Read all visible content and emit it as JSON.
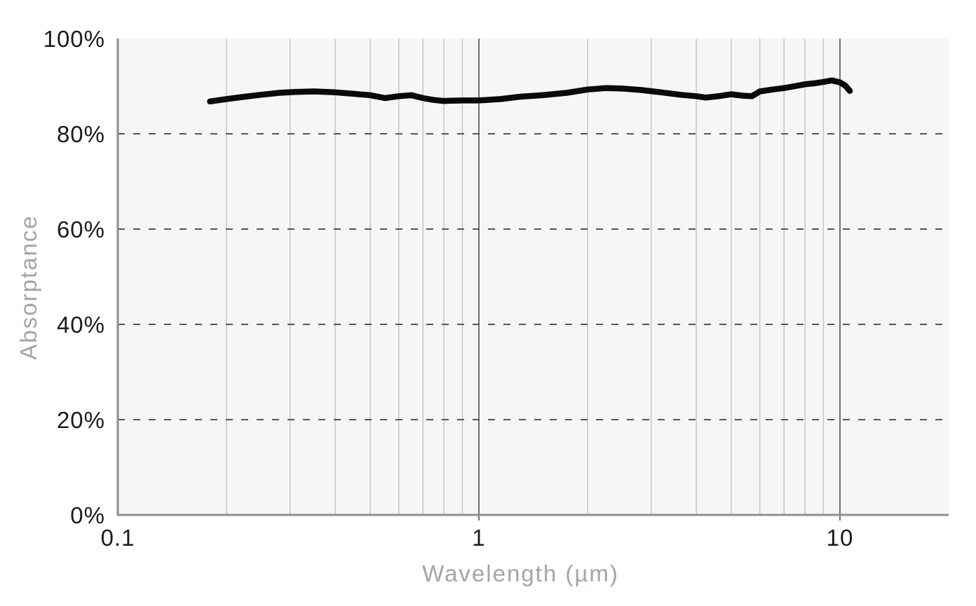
{
  "chart": {
    "title": "",
    "x_axis_title": "Wavelength (µm)",
    "y_axis_title": "Absorptance",
    "x_tick_labels": [
      "0.1",
      "1",
      "10"
    ],
    "y_tick_labels": [
      "0%",
      "20%",
      "40%",
      "60%",
      "80%",
      "100%"
    ]
  },
  "colors": {
    "page_bg": "#ffffff",
    "plot_bg": "#f6f6f6",
    "grid_minor": "#c6c6c6",
    "grid_major": "#6f6f6f",
    "grid_dashed": "#565656",
    "axis_border": "#8f8f8f",
    "tick_text": "#1b1b1b",
    "axis_title_text": "#a7a3a7",
    "line": "#0a0a0a"
  },
  "chart_data": {
    "type": "line",
    "title": "",
    "xlabel": "Wavelength (µm)",
    "ylabel": "Absorptance",
    "x_scale": "log",
    "xlim": [
      0.1,
      20
    ],
    "ylim": [
      0,
      100
    ],
    "y_unit": "%",
    "grid": true,
    "legend": false,
    "x_ticks": [
      {
        "label": "0.1",
        "value": 0.1
      },
      {
        "label": "1",
        "value": 1
      },
      {
        "label": "10",
        "value": 10
      }
    ],
    "y_ticks": [
      {
        "label": "0%",
        "value": 0
      },
      {
        "label": "20%",
        "value": 20
      },
      {
        "label": "40%",
        "value": 40
      },
      {
        "label": "60%",
        "value": 60
      },
      {
        "label": "80%",
        "value": 80
      },
      {
        "label": "100%",
        "value": 100
      }
    ],
    "x_gridlines_minor": [
      0.2,
      0.3,
      0.4,
      0.5,
      0.6,
      0.7,
      0.8,
      0.9,
      2,
      3,
      4,
      5,
      6,
      7,
      8,
      9
    ],
    "x_gridlines_major": [
      1,
      10
    ],
    "y_gridlines_dashed": [
      20,
      40,
      60,
      80
    ],
    "series": [
      {
        "name": "Absorptance",
        "color": "#0a0a0a",
        "points": [
          [
            0.18,
            86.8
          ],
          [
            0.2,
            87.3
          ],
          [
            0.22,
            87.7
          ],
          [
            0.25,
            88.2
          ],
          [
            0.28,
            88.6
          ],
          [
            0.31,
            88.8
          ],
          [
            0.35,
            88.9
          ],
          [
            0.4,
            88.7
          ],
          [
            0.45,
            88.4
          ],
          [
            0.5,
            88.1
          ],
          [
            0.55,
            87.5
          ],
          [
            0.6,
            87.9
          ],
          [
            0.65,
            88.1
          ],
          [
            0.7,
            87.5
          ],
          [
            0.75,
            87.1
          ],
          [
            0.8,
            86.9
          ],
          [
            0.9,
            87.0
          ],
          [
            1.0,
            87.0
          ],
          [
            1.15,
            87.3
          ],
          [
            1.3,
            87.8
          ],
          [
            1.5,
            88.1
          ],
          [
            1.75,
            88.6
          ],
          [
            2.0,
            89.3
          ],
          [
            2.25,
            89.6
          ],
          [
            2.5,
            89.5
          ],
          [
            2.8,
            89.2
          ],
          [
            3.2,
            88.7
          ],
          [
            3.6,
            88.2
          ],
          [
            4.0,
            87.9
          ],
          [
            4.25,
            87.6
          ],
          [
            4.6,
            87.9
          ],
          [
            5.0,
            88.3
          ],
          [
            5.4,
            88.0
          ],
          [
            5.7,
            87.9
          ],
          [
            6.0,
            88.9
          ],
          [
            6.5,
            89.3
          ],
          [
            7.0,
            89.6
          ],
          [
            7.5,
            90.0
          ],
          [
            8.0,
            90.4
          ],
          [
            8.5,
            90.6
          ],
          [
            9.0,
            90.9
          ],
          [
            9.5,
            91.2
          ],
          [
            10.0,
            90.8
          ],
          [
            10.35,
            90.1
          ],
          [
            10.65,
            89.0
          ]
        ]
      }
    ]
  }
}
